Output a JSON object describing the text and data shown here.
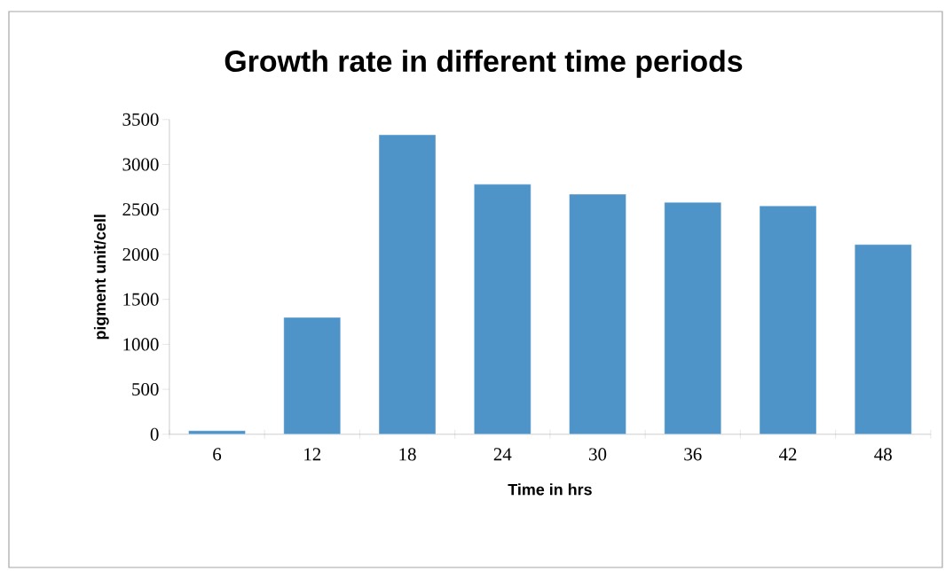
{
  "chart_data": {
    "type": "bar",
    "title": "Growth rate in different time periods",
    "xlabel": "Time in hrs",
    "ylabel": "pigment unit/cell",
    "categories": [
      "6",
      "12",
      "18",
      "24",
      "30",
      "36",
      "42",
      "48"
    ],
    "values": [
      40,
      1300,
      3330,
      2780,
      2670,
      2580,
      2540,
      2110
    ],
    "color": "#4f94c8",
    "ylim": [
      0,
      3500
    ],
    "yticks": [
      0,
      500,
      1000,
      1500,
      2000,
      2500,
      3000,
      3500
    ],
    "grid": false
  }
}
